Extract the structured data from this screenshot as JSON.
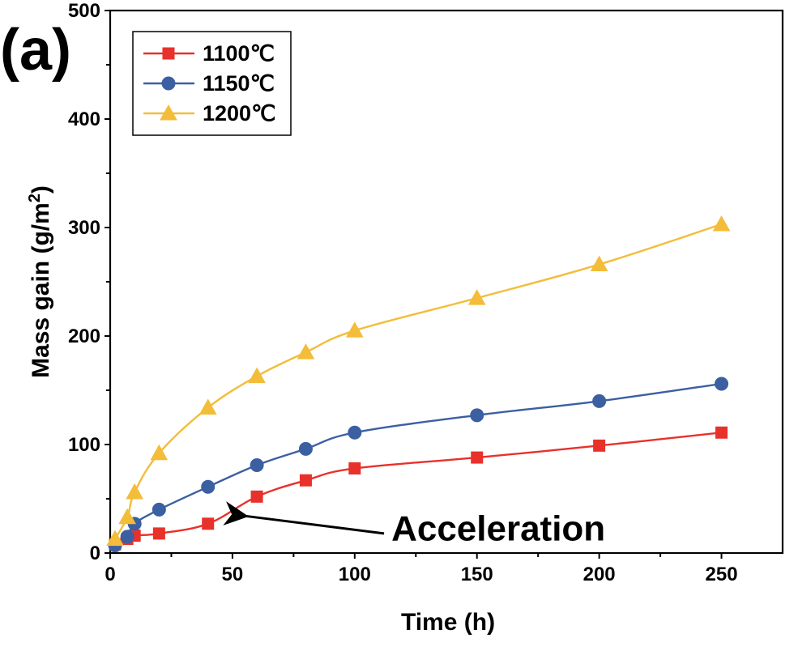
{
  "chart_data": {
    "type": "line",
    "panel_label": "(a)",
    "xlabel": "Time (h)",
    "ylabel_main": "Mass gain (g/m",
    "ylabel_sup": "2",
    "ylabel_tail": ")",
    "xlim": [
      0,
      275
    ],
    "ylim": [
      0,
      500
    ],
    "x_ticks": [
      0,
      50,
      100,
      150,
      200,
      250
    ],
    "y_ticks": [
      0,
      100,
      200,
      300,
      400,
      500
    ],
    "grid": false,
    "legend_position": "top-left",
    "series": [
      {
        "name": "1100℃",
        "color": "#e8312b",
        "marker": "square",
        "points": [
          {
            "x": 2,
            "y": 8
          },
          {
            "x": 7,
            "y": 13
          },
          {
            "x": 10,
            "y": 16
          },
          {
            "x": 20,
            "y": 18
          },
          {
            "x": 40,
            "y": 27
          },
          {
            "x": 60,
            "y": 52
          },
          {
            "x": 80,
            "y": 67
          },
          {
            "x": 100,
            "y": 78
          },
          {
            "x": 150,
            "y": 88
          },
          {
            "x": 200,
            "y": 99
          },
          {
            "x": 250,
            "y": 111
          }
        ]
      },
      {
        "name": "1150℃",
        "color": "#3b5fa1",
        "marker": "circle",
        "points": [
          {
            "x": 2,
            "y": 7
          },
          {
            "x": 7,
            "y": 15
          },
          {
            "x": 10,
            "y": 27
          },
          {
            "x": 20,
            "y": 40
          },
          {
            "x": 40,
            "y": 61
          },
          {
            "x": 60,
            "y": 81
          },
          {
            "x": 80,
            "y": 96
          },
          {
            "x": 100,
            "y": 111
          },
          {
            "x": 150,
            "y": 127
          },
          {
            "x": 200,
            "y": 140
          },
          {
            "x": 250,
            "y": 156
          }
        ]
      },
      {
        "name": "1200℃",
        "color": "#f3bd3a",
        "marker": "triangle",
        "points": [
          {
            "x": 2,
            "y": 13
          },
          {
            "x": 7,
            "y": 33
          },
          {
            "x": 10,
            "y": 56
          },
          {
            "x": 20,
            "y": 92
          },
          {
            "x": 40,
            "y": 134
          },
          {
            "x": 60,
            "y": 163
          },
          {
            "x": 80,
            "y": 185
          },
          {
            "x": 100,
            "y": 205
          },
          {
            "x": 150,
            "y": 235
          },
          {
            "x": 200,
            "y": 266
          },
          {
            "x": 250,
            "y": 303
          }
        ]
      }
    ],
    "annotation": {
      "text": "Acceleration",
      "text_x": 115,
      "text_y": 25,
      "arrow_from": {
        "x": 112,
        "y": 18
      },
      "arrow_to": {
        "x": 53,
        "y": 34
      }
    }
  }
}
